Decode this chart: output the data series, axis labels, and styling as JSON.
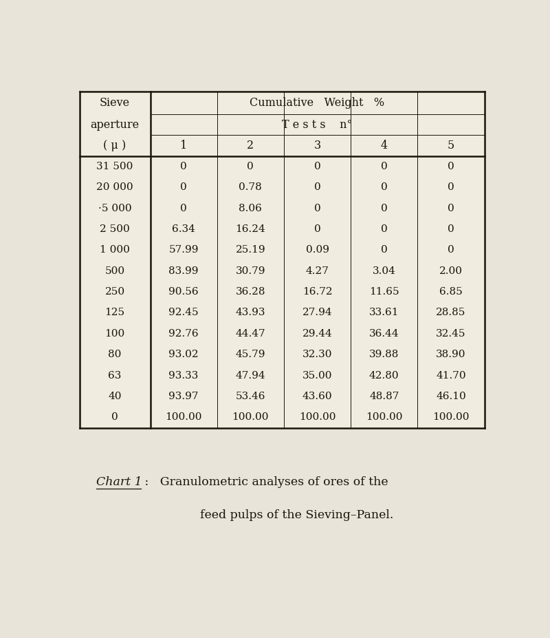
{
  "sieve_apertures": [
    "31 500",
    "20 000",
    "·5 000",
    "2 500",
    "1 000",
    "500",
    "250",
    "125",
    "100",
    "80",
    "63",
    "40",
    "0"
  ],
  "data": [
    [
      "0",
      "0",
      "0",
      "0",
      "0"
    ],
    [
      "0",
      "0.78",
      "0",
      "0",
      "0"
    ],
    [
      "0",
      "8.06",
      "0",
      "0",
      "0"
    ],
    [
      "6.34",
      "16.24",
      "0",
      "0",
      "0"
    ],
    [
      "57.99",
      "25.19",
      "0.09",
      "0",
      "0"
    ],
    [
      "83.99",
      "30.79",
      "4.27",
      "3.04",
      "2.00"
    ],
    [
      "90.56",
      "36.28",
      "16.72",
      "11.65",
      "6.85"
    ],
    [
      "92.45",
      "43.93",
      "27.94",
      "33.61",
      "28.85"
    ],
    [
      "92.76",
      "44.47",
      "29.44",
      "36.44",
      "32.45"
    ],
    [
      "93.02",
      "45.79",
      "32.30",
      "39.88",
      "38.90"
    ],
    [
      "93.33",
      "47.94",
      "35.00",
      "42.80",
      "41.70"
    ],
    [
      "93.97",
      "53.46",
      "43.60",
      "48.87",
      "46.10"
    ],
    [
      "100.00",
      "100.00",
      "100.00",
      "100.00",
      "100.00"
    ]
  ],
  "sieve_label_lines": [
    "Sieve",
    "aperture",
    "( μ )"
  ],
  "cumulative_header": "Cumulative   Weight   %",
  "tests_header": "T e s t s    n°",
  "col_numbers": [
    "1",
    "2",
    "3",
    "4",
    "5"
  ],
  "caption_italic": "Chart 1",
  "caption_rest": " :   Granulometric analyses of ores of the",
  "caption_line2": "feed pulps of the Sieving–Panel.",
  "bg_color": "#e8e4da",
  "table_bg": "#f0ece0",
  "text_color": "#1a1508",
  "font_size": 11.0,
  "header_font_size": 11.5,
  "caption_font_size": 12.5,
  "lw_thick": 1.8,
  "lw_thin": 0.7
}
